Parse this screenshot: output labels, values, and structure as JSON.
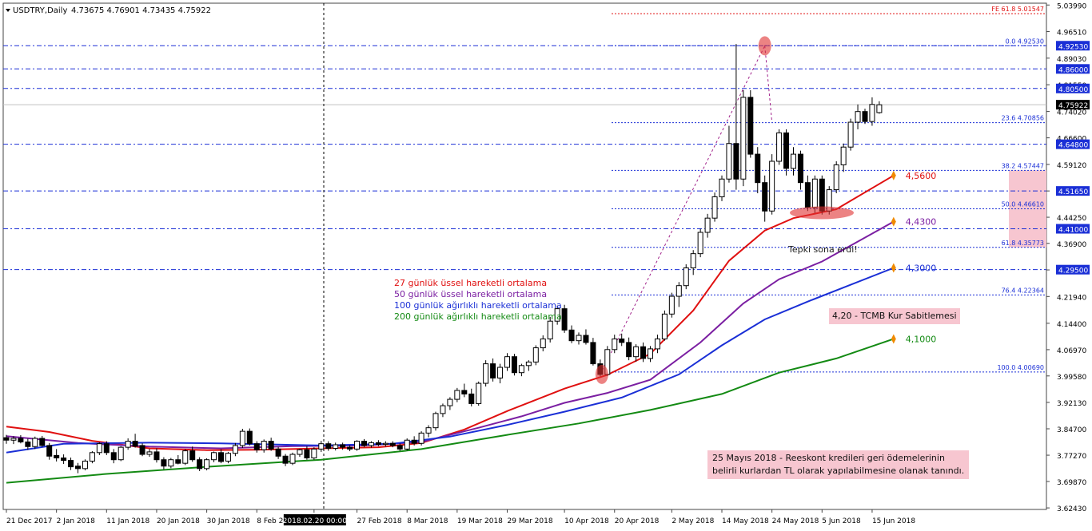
{
  "header": {
    "symbol": "USDTRY,Daily",
    "ohlc": "4.73675 4.76901 4.73435 4.75922"
  },
  "chart_data": {
    "type": "candlestick",
    "symbol": "USDTRY",
    "timeframe": "Daily",
    "ylim": [
      3.62,
      5.045
    ],
    "y_ticks": [
      "5.03990",
      "4.96510",
      "4.89030",
      "4.81550",
      "4.74020",
      "4.66600",
      "4.59120",
      "4.51650",
      "4.44250",
      "4.36900",
      "4.29420",
      "4.21940",
      "4.14400",
      "4.06970",
      "3.99580",
      "3.92130",
      "3.84700",
      "3.77270",
      "3.69870",
      "3.62430"
    ],
    "x_ticks": [
      "21 Dec 2017",
      "2 Jan 2018",
      "11 Jan 2018",
      "20 Jan 2018",
      "30 Jan 2018",
      "8 Feb 2018",
      "2018.02.20 00:00",
      "27 Feb 2018",
      "8 Mar 2018",
      "19 Mar 2018",
      "29 Mar 2018",
      "10 Apr 2018",
      "20 Apr 2018",
      "2 May 2018",
      "14 May 2018",
      "24 May 2018",
      "5 Jun 2018",
      "15 Jun 2018"
    ],
    "x_tick_index": [
      0,
      7,
      14,
      21,
      28,
      35,
      43,
      49,
      56,
      63,
      70,
      78,
      85,
      93,
      100,
      107,
      114,
      121
    ],
    "candles": [
      [
        3.822,
        3.83,
        3.805,
        3.815
      ],
      [
        3.815,
        3.826,
        3.804,
        3.82
      ],
      [
        3.82,
        3.829,
        3.806,
        3.81
      ],
      [
        3.81,
        3.819,
        3.788,
        3.797
      ],
      [
        3.797,
        3.825,
        3.79,
        3.82
      ],
      [
        3.82,
        3.827,
        3.796,
        3.8
      ],
      [
        3.8,
        3.807,
        3.76,
        3.77
      ],
      [
        3.772,
        3.79,
        3.755,
        3.765
      ],
      [
        3.765,
        3.775,
        3.748,
        3.758
      ],
      [
        3.758,
        3.766,
        3.731,
        3.74
      ],
      [
        3.742,
        3.751,
        3.722,
        3.735
      ],
      [
        3.735,
        3.761,
        3.73,
        3.756
      ],
      [
        3.756,
        3.784,
        3.75,
        3.78
      ],
      [
        3.78,
        3.809,
        3.773,
        3.805
      ],
      [
        3.805,
        3.812,
        3.773,
        3.78
      ],
      [
        3.78,
        3.79,
        3.75,
        3.76
      ],
      [
        3.76,
        3.798,
        3.756,
        3.795
      ],
      [
        3.795,
        3.82,
        3.788,
        3.812
      ],
      [
        3.812,
        3.833,
        3.794,
        3.798
      ],
      [
        3.8,
        3.806,
        3.77,
        3.775
      ],
      [
        3.775,
        3.79,
        3.768,
        3.782
      ],
      [
        3.782,
        3.792,
        3.752,
        3.76
      ],
      [
        3.76,
        3.767,
        3.733,
        3.742
      ],
      [
        3.742,
        3.765,
        3.736,
        3.76
      ],
      [
        3.76,
        3.773,
        3.747,
        3.75
      ],
      [
        3.75,
        3.79,
        3.745,
        3.785
      ],
      [
        3.785,
        3.797,
        3.754,
        3.76
      ],
      [
        3.76,
        3.767,
        3.728,
        3.735
      ],
      [
        3.735,
        3.764,
        3.73,
        3.76
      ],
      [
        3.76,
        3.783,
        3.753,
        3.78
      ],
      [
        3.78,
        3.789,
        3.75,
        3.755
      ],
      [
        3.756,
        3.782,
        3.75,
        3.778
      ],
      [
        3.778,
        3.807,
        3.77,
        3.8
      ],
      [
        3.8,
        3.847,
        3.793,
        3.84
      ],
      [
        3.84,
        3.848,
        3.8,
        3.805
      ],
      [
        3.805,
        3.812,
        3.78,
        3.788
      ],
      [
        3.788,
        3.817,
        3.78,
        3.812
      ],
      [
        3.812,
        3.822,
        3.785,
        3.79
      ],
      [
        3.79,
        3.796,
        3.762,
        3.77
      ],
      [
        3.77,
        3.776,
        3.742,
        3.75
      ],
      [
        3.75,
        3.78,
        3.745,
        3.775
      ],
      [
        3.775,
        3.791,
        3.768,
        3.788
      ],
      [
        3.788,
        3.798,
        3.76,
        3.765
      ],
      [
        3.765,
        3.795,
        3.76,
        3.79
      ],
      [
        3.79,
        3.813,
        3.782,
        3.805
      ],
      [
        3.805,
        3.812,
        3.785,
        3.792
      ],
      [
        3.792,
        3.808,
        3.786,
        3.802
      ],
      [
        3.802,
        3.808,
        3.788,
        3.795
      ],
      [
        3.795,
        3.801,
        3.784,
        3.79
      ],
      [
        3.79,
        3.815,
        3.785,
        3.812
      ],
      [
        3.812,
        3.818,
        3.795,
        3.8
      ],
      [
        3.8,
        3.812,
        3.794,
        3.808
      ],
      [
        3.808,
        3.815,
        3.798,
        3.803
      ],
      [
        3.803,
        3.812,
        3.797,
        3.806
      ],
      [
        3.806,
        3.812,
        3.795,
        3.8
      ],
      [
        3.8,
        3.806,
        3.785,
        3.79
      ],
      [
        3.79,
        3.82,
        3.786,
        3.815
      ],
      [
        3.815,
        3.826,
        3.8,
        3.806
      ],
      [
        3.806,
        3.84,
        3.8,
        3.835
      ],
      [
        3.835,
        3.857,
        3.823,
        3.85
      ],
      [
        3.85,
        3.895,
        3.842,
        3.89
      ],
      [
        3.89,
        3.918,
        3.88,
        3.912
      ],
      [
        3.912,
        3.936,
        3.9,
        3.93
      ],
      [
        3.93,
        3.962,
        3.922,
        3.955
      ],
      [
        3.955,
        3.974,
        3.936,
        3.945
      ],
      [
        3.945,
        3.96,
        3.91,
        3.918
      ],
      [
        3.918,
        3.98,
        3.912,
        3.975
      ],
      [
        3.975,
        4.04,
        3.966,
        4.03
      ],
      [
        4.03,
        4.045,
        3.98,
        3.99
      ],
      [
        3.99,
        4.03,
        3.975,
        4.02
      ],
      [
        4.02,
        4.06,
        4.01,
        4.05
      ],
      [
        4.05,
        4.058,
        3.997,
        4.005
      ],
      [
        4.005,
        4.03,
        3.995,
        4.025
      ],
      [
        4.025,
        4.04,
        4.01,
        4.035
      ],
      [
        4.035,
        4.082,
        4.026,
        4.075
      ],
      [
        4.075,
        4.11,
        4.065,
        4.1
      ],
      [
        4.1,
        4.162,
        4.09,
        4.15
      ],
      [
        4.15,
        4.194,
        4.14,
        4.185
      ],
      [
        4.185,
        4.196,
        4.117,
        4.125
      ],
      [
        4.125,
        4.138,
        4.088,
        4.095
      ],
      [
        4.095,
        4.118,
        4.084,
        4.11
      ],
      [
        4.11,
        4.127,
        4.084,
        4.09
      ],
      [
        4.09,
        4.103,
        4.025,
        4.03
      ],
      [
        4.03,
        4.042,
        3.995,
        4.0
      ],
      [
        4.0,
        4.08,
        3.996,
        4.07
      ],
      [
        4.07,
        4.112,
        4.06,
        4.1
      ],
      [
        4.1,
        4.115,
        4.08,
        4.09
      ],
      [
        4.09,
        4.104,
        4.04,
        4.05
      ],
      [
        4.05,
        4.085,
        4.036,
        4.078
      ],
      [
        4.078,
        4.09,
        4.035,
        4.045
      ],
      [
        4.045,
        4.08,
        4.035,
        4.072
      ],
      [
        4.072,
        4.112,
        4.06,
        4.1
      ],
      [
        4.1,
        4.18,
        4.095,
        4.17
      ],
      [
        4.17,
        4.23,
        4.16,
        4.22
      ],
      [
        4.22,
        4.26,
        4.19,
        4.25
      ],
      [
        4.25,
        4.31,
        4.24,
        4.3
      ],
      [
        4.3,
        4.35,
        4.28,
        4.34
      ],
      [
        4.34,
        4.41,
        4.33,
        4.4
      ],
      [
        4.4,
        4.452,
        4.385,
        4.44
      ],
      [
        4.44,
        4.512,
        4.43,
        4.5
      ],
      [
        4.5,
        4.56,
        4.488,
        4.55
      ],
      [
        4.55,
        4.7,
        4.54,
        4.65
      ],
      [
        4.65,
        4.93,
        4.52,
        4.55
      ],
      [
        4.55,
        4.8,
        4.53,
        4.78
      ],
      [
        4.78,
        4.8,
        4.61,
        4.62
      ],
      [
        4.62,
        4.64,
        4.51,
        4.54
      ],
      [
        4.54,
        4.56,
        4.43,
        4.46
      ],
      [
        4.46,
        4.62,
        4.45,
        4.6
      ],
      [
        4.6,
        4.69,
        4.59,
        4.68
      ],
      [
        4.68,
        4.69,
        4.56,
        4.58
      ],
      [
        4.58,
        4.64,
        4.56,
        4.62
      ],
      [
        4.62,
        4.63,
        4.52,
        4.54
      ],
      [
        4.54,
        4.56,
        4.46,
        4.47
      ],
      [
        4.47,
        4.56,
        4.455,
        4.55
      ],
      [
        4.55,
        4.56,
        4.45,
        4.46
      ],
      [
        4.46,
        4.53,
        4.45,
        4.52
      ],
      [
        4.52,
        4.6,
        4.51,
        4.59
      ],
      [
        4.59,
        4.65,
        4.57,
        4.64
      ],
      [
        4.64,
        4.72,
        4.63,
        4.71
      ],
      [
        4.71,
        4.76,
        4.69,
        4.74
      ],
      [
        4.74,
        4.748,
        4.705,
        4.712
      ],
      [
        4.712,
        4.78,
        4.7,
        4.76
      ],
      [
        4.737,
        4.769,
        4.734,
        4.759
      ]
    ],
    "moving_averages": [
      {
        "name": "27 günlük üssel hareketli ortalama",
        "color": "#e01010",
        "points": [
          [
            0,
            3.853
          ],
          [
            6,
            3.838
          ],
          [
            12,
            3.813
          ],
          [
            20,
            3.792
          ],
          [
            28,
            3.787
          ],
          [
            35,
            3.788
          ],
          [
            44,
            3.792
          ],
          [
            52,
            3.795
          ],
          [
            58,
            3.807
          ],
          [
            64,
            3.845
          ],
          [
            70,
            3.897
          ],
          [
            78,
            3.96
          ],
          [
            84,
            3.999
          ],
          [
            90,
            4.058
          ],
          [
            96,
            4.18
          ],
          [
            101,
            4.32
          ],
          [
            106,
            4.405
          ],
          [
            110,
            4.44
          ],
          [
            116,
            4.465
          ],
          [
            124,
            4.56
          ]
        ]
      },
      {
        "name": "50 günlük üssel hareketli ortalama",
        "color": "#7b1fa2",
        "points": [
          [
            0,
            3.826
          ],
          [
            10,
            3.807
          ],
          [
            20,
            3.797
          ],
          [
            30,
            3.792
          ],
          [
            40,
            3.798
          ],
          [
            50,
            3.8
          ],
          [
            58,
            3.81
          ],
          [
            66,
            3.85
          ],
          [
            72,
            3.882
          ],
          [
            78,
            3.92
          ],
          [
            84,
            3.948
          ],
          [
            90,
            3.985
          ],
          [
            97,
            4.09
          ],
          [
            103,
            4.2
          ],
          [
            108,
            4.268
          ],
          [
            114,
            4.318
          ],
          [
            124,
            4.43
          ]
        ]
      },
      {
        "name": "100 günlük ağırlıklı hareketli ortalama",
        "color": "#1a2fd6",
        "points": [
          [
            0,
            3.78
          ],
          [
            8,
            3.805
          ],
          [
            20,
            3.808
          ],
          [
            30,
            3.806
          ],
          [
            44,
            3.8
          ],
          [
            54,
            3.805
          ],
          [
            62,
            3.825
          ],
          [
            70,
            3.858
          ],
          [
            78,
            3.895
          ],
          [
            86,
            3.935
          ],
          [
            94,
            4.0
          ],
          [
            100,
            4.082
          ],
          [
            106,
            4.155
          ],
          [
            112,
            4.205
          ],
          [
            124,
            4.3
          ]
        ]
      },
      {
        "name": "200 günlük ağırlıklı hareketli ortalama",
        "color": "#138a13",
        "points": [
          [
            0,
            3.695
          ],
          [
            14,
            3.72
          ],
          [
            28,
            3.74
          ],
          [
            44,
            3.76
          ],
          [
            58,
            3.79
          ],
          [
            70,
            3.83
          ],
          [
            80,
            3.862
          ],
          [
            90,
            3.9
          ],
          [
            100,
            3.945
          ],
          [
            108,
            4.005
          ],
          [
            116,
            4.045
          ],
          [
            124,
            4.1
          ]
        ]
      }
    ],
    "fibonacci": [
      {
        "label": "FE 61.8 5.01547",
        "value": 5.01547,
        "color": "#e01010"
      },
      {
        "label": "0.0 4.92530",
        "value": 4.9253,
        "color": "#1a2fd6"
      },
      {
        "label": "23.6 4.70856",
        "value": 4.70856,
        "color": "#1a2fd6"
      },
      {
        "label": "38.2 4.57447",
        "value": 4.57447,
        "color": "#1a2fd6"
      },
      {
        "label": "50.0 4.46610",
        "value": 4.4661,
        "color": "#1a2fd6"
      },
      {
        "label": "61.8 4.35773",
        "value": 4.35773,
        "color": "#1a2fd6"
      },
      {
        "label": "76.4 4.22364",
        "value": 4.22364,
        "color": "#1a2fd6"
      },
      {
        "label": "100.0 4.00690",
        "value": 4.0069,
        "color": "#1a2fd6"
      }
    ],
    "horizontal_levels": [
      {
        "label": "4.86000",
        "value": 4.86
      },
      {
        "label": "4.80500",
        "value": 4.805
      },
      {
        "label": "4.64800",
        "value": 4.648
      },
      {
        "label": "4.51650",
        "value": 4.5165
      },
      {
        "label": "4.41000",
        "value": 4.41
      },
      {
        "label": "4.29500",
        "value": 4.295
      }
    ],
    "current_price": {
      "label": "4.75922",
      "value": 4.75922
    },
    "ma_labels": [
      {
        "text": "4,5600",
        "value": 4.56,
        "color": "#e01010"
      },
      {
        "text": "4,4300",
        "value": 4.43,
        "color": "#7b1fa2"
      },
      {
        "text": "4,3000",
        "value": 4.3,
        "color": "#1a2fd6"
      },
      {
        "text": "4,1000",
        "value": 4.1,
        "color": "#138a13"
      }
    ],
    "legend": [
      {
        "text": "27 günlük üssel hareketli ortalama",
        "color": "#e01010"
      },
      {
        "text": "50 günlük üssel hareketli ortalama",
        "color": "#7b1fa2"
      },
      {
        "text": "100 günlük ağırlıklı hareketli ortalama",
        "color": "#1a2fd6"
      },
      {
        "text": "200 günlük ağırlıklı hareketli ortalama",
        "color": "#138a13"
      }
    ],
    "annotations": {
      "reaction_end": "Tepki sona erdi!",
      "tcmb": "4,20 - TCMB Kur Sabitlemesi",
      "note_line1": "25 Mayıs 2018 - Reeskont kredileri geri ödemelerinin",
      "note_line2": "belirli kurlardan TL olarak yapılabilmesine olanak tanındı."
    }
  }
}
